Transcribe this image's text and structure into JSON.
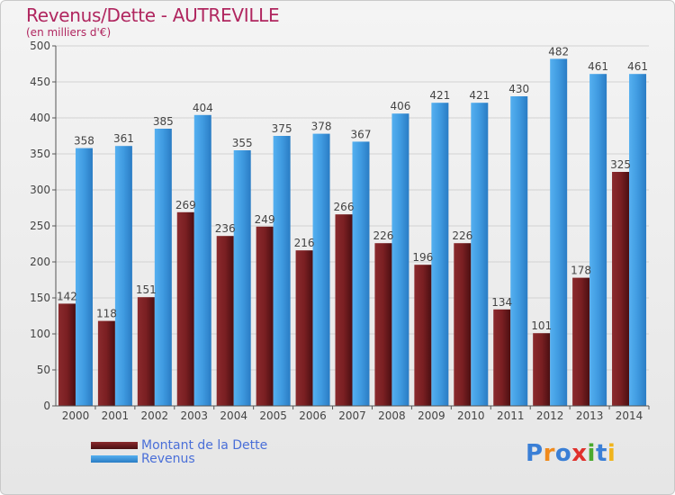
{
  "header": {
    "title": "Revenus/Dette - AUTREVILLE",
    "subtitle": "(en milliers d'€)"
  },
  "legend": {
    "debt_label": "Montant de la Dette",
    "revenue_label": "Revenus"
  },
  "logo": {
    "text": "Proxiti",
    "letters": [
      "P",
      "r",
      "o",
      "x",
      "i",
      "t",
      "i"
    ]
  },
  "colors": {
    "debt": "#7a1f22",
    "revenue": "#3f9ae0",
    "title": "#b0265f",
    "legend_text": "#4a6fd8"
  },
  "chart_data": {
    "type": "bar",
    "title": "Revenus/Dette - AUTREVILLE",
    "subtitle": "(en milliers d'€)",
    "categories": [
      "2000",
      "2001",
      "2002",
      "2003",
      "2004",
      "2005",
      "2006",
      "2007",
      "2008",
      "2009",
      "2010",
      "2011",
      "2012",
      "2013",
      "2014"
    ],
    "series": [
      {
        "name": "Montant de la Dette",
        "values": [
          142,
          118,
          151,
          269,
          236,
          249,
          216,
          266,
          226,
          196,
          226,
          134,
          101,
          178,
          325
        ]
      },
      {
        "name": "Revenus",
        "values": [
          358,
          361,
          385,
          404,
          355,
          375,
          378,
          367,
          406,
          421,
          421,
          430,
          482,
          461,
          461
        ]
      }
    ],
    "ylim": [
      0,
      500
    ],
    "yticks": [
      0,
      50,
      100,
      150,
      200,
      250,
      300,
      350,
      400,
      450,
      500
    ],
    "grid": true,
    "legend_position": "bottom-left"
  }
}
